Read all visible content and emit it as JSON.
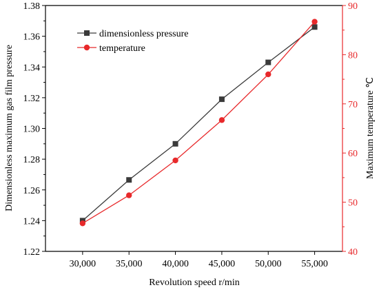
{
  "chart_data": {
    "type": "line",
    "title": "",
    "xlabel": "Revolution speed r/min",
    "ylabel_left": "Dimensionless maximum gas film pressure",
    "ylabel_right": "Maximum temperature ℃",
    "x": [
      30000,
      35000,
      40000,
      45000,
      50000,
      55000
    ],
    "x_tick_labels": [
      "30,000",
      "35,000",
      "40,000",
      "45,000",
      "50,000",
      "55,000"
    ],
    "xlim": [
      26000,
      58000
    ],
    "ylim_left": [
      1.22,
      1.38
    ],
    "ylim_right": [
      40,
      90
    ],
    "y_left_ticks": [
      "1.22",
      "1.24",
      "1.26",
      "1.28",
      "1.30",
      "1.32",
      "1.34",
      "1.36",
      "1.38"
    ],
    "y_right_ticks": [
      "40",
      "50",
      "60",
      "70",
      "80",
      "90"
    ],
    "grid": false,
    "legend_position": "top-left",
    "series": [
      {
        "name": "dimensionless pressure",
        "axis": "left",
        "marker": "square",
        "color": "#3a3a3a",
        "values": [
          1.24,
          1.2665,
          1.29,
          1.319,
          1.343,
          1.366
        ]
      },
      {
        "name": "temperature",
        "axis": "right",
        "marker": "circle",
        "color": "#e8292b",
        "values": [
          45.7,
          51.4,
          58.5,
          66.7,
          76.0,
          86.7
        ]
      }
    ],
    "colors": {
      "left_axis": "#000000",
      "right_axis": "#e8292b"
    }
  }
}
